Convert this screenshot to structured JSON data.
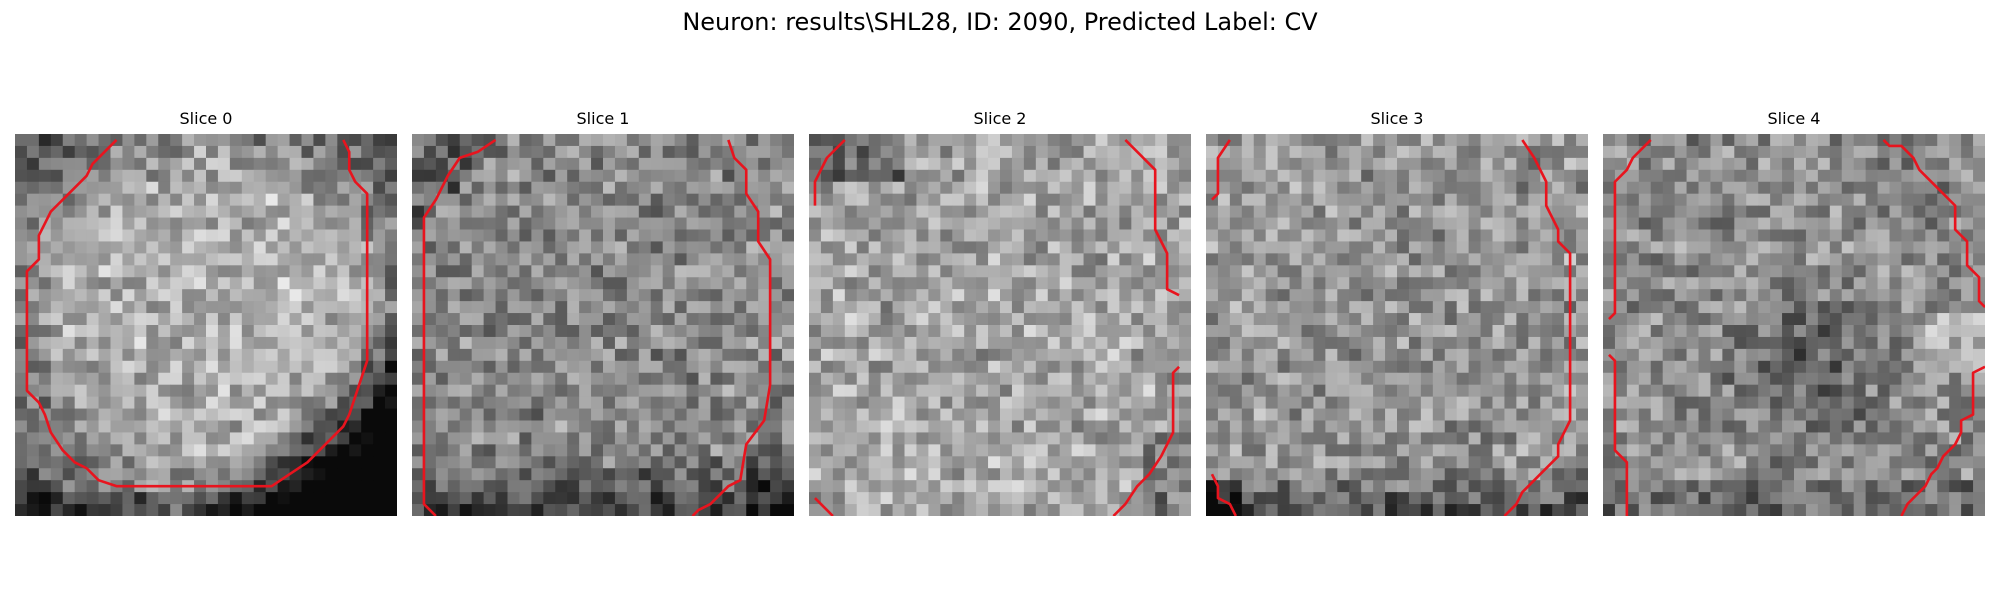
{
  "figure": {
    "title": "Neuron: results\\SHL28, ID: 2090, Predicted Label: CV"
  },
  "panels": [
    {
      "title": "Slice 0"
    },
    {
      "title": "Slice 1"
    },
    {
      "title": "Slice 2"
    },
    {
      "title": "Slice 3"
    },
    {
      "title": "Slice 4"
    }
  ],
  "colors": {
    "contour": "#e8141e",
    "background": "#ffffff",
    "colormap": "grayscale"
  }
}
